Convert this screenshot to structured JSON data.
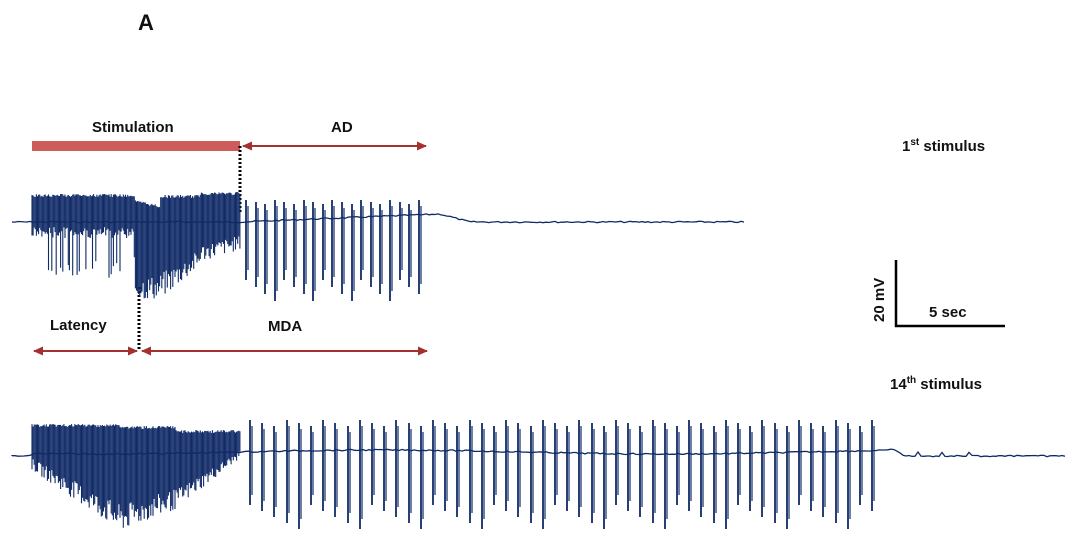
{
  "panel_label": "A",
  "annotations": {
    "stimulation": "Stimulation",
    "ad": "AD",
    "latency": "Latency",
    "mda": "MDA"
  },
  "traces": {
    "first": {
      "label_num": "1",
      "label_sup": "st",
      "label_word": " stimulus"
    },
    "fourteenth": {
      "label_num": "14",
      "label_sup": "th",
      "label_word": " stimulus"
    }
  },
  "scale_bar": {
    "vertical": "20 mV",
    "horizontal": "5 sec"
  },
  "colors": {
    "trace": "#0f2a66",
    "stim_bar": "#cd5d5a",
    "arrow": "#a3312f",
    "dotted": "#000000",
    "text": "#111111"
  }
}
